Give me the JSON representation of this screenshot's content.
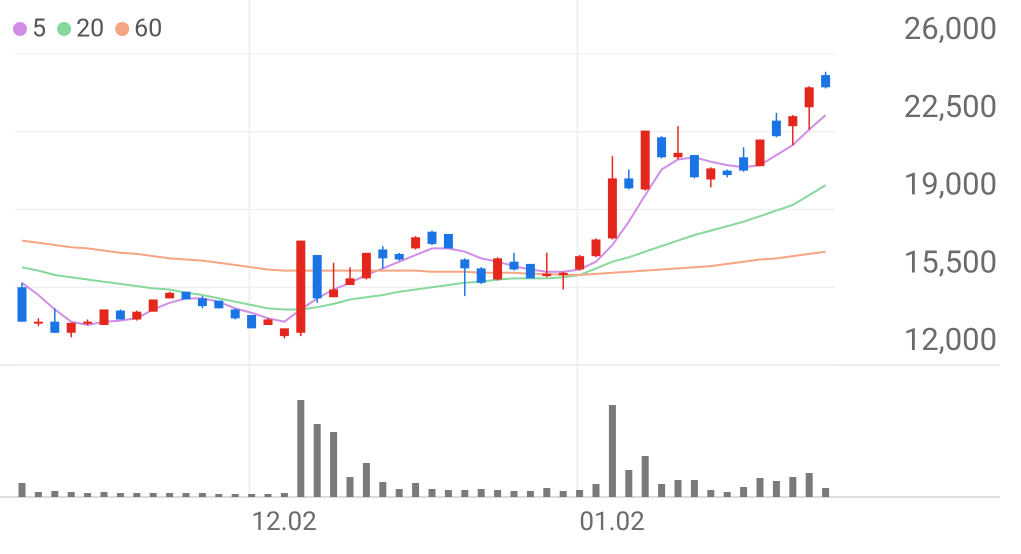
{
  "chart_data": {
    "type": "candlestick",
    "categories": [
      null,
      null,
      null,
      null,
      null,
      null,
      null,
      null,
      null,
      null,
      null,
      null,
      null,
      null,
      "12.02",
      null,
      null,
      null,
      null,
      null,
      null,
      null,
      null,
      null,
      null,
      null,
      null,
      null,
      null,
      null,
      null,
      null,
      null,
      null,
      "01.02",
      null,
      null,
      null,
      null,
      null,
      null,
      null,
      null,
      null,
      null,
      null,
      null,
      null,
      null,
      null
    ],
    "open": [
      15500,
      13900,
      13950,
      13450,
      13900,
      13800,
      14450,
      14050,
      14400,
      15000,
      15300,
      15000,
      14900,
      14500,
      14250,
      13800,
      13300,
      13450,
      16950,
      15050,
      15600,
      15900,
      17200,
      17000,
      17250,
      18000,
      17900,
      16750,
      16350,
      15850,
      16650,
      16550,
      16000,
      16050,
      16300,
      16900,
      17700,
      20400,
      19900,
      22250,
      21350,
      21450,
      20350,
      20750,
      21350,
      20950,
      23000,
      22750,
      23600,
      25050
    ],
    "high": [
      15700,
      14100,
      14550,
      13900,
      14050,
      14500,
      14500,
      14450,
      14950,
      15300,
      15300,
      15100,
      14900,
      14550,
      14250,
      14100,
      13650,
      17600,
      16950,
      16600,
      16400,
      17050,
      17350,
      17050,
      17800,
      18050,
      17900,
      16800,
      16400,
      16850,
      17050,
      16550,
      17050,
      16200,
      16950,
      17700,
      21400,
      20800,
      22550,
      22300,
      22750,
      21450,
      20900,
      20800,
      21800,
      22150,
      23350,
      23250,
      24550,
      25200
    ],
    "low": [
      13950,
      13750,
      13450,
      13250,
      13800,
      13800,
      14050,
      14000,
      14400,
      15000,
      14950,
      14550,
      14550,
      14050,
      13650,
      13800,
      13200,
      13300,
      14800,
      15050,
      15600,
      15850,
      16350,
      16700,
      17200,
      17400,
      17250,
      15100,
      15650,
      15800,
      16250,
      15900,
      15950,
      15400,
      16250,
      16850,
      17650,
      19900,
      19850,
      21300,
      21250,
      20400,
      20000,
      20450,
      20700,
      20950,
      22250,
      21900,
      22600,
      24450
    ],
    "close": [
      13950,
      13950,
      13450,
      13900,
      13950,
      14500,
      14050,
      14400,
      14950,
      15250,
      14950,
      14650,
      14550,
      14100,
      13650,
      14050,
      13650,
      17600,
      15000,
      15400,
      15900,
      17050,
      16800,
      16750,
      17750,
      17450,
      17250,
      16350,
      15700,
      16800,
      16300,
      15900,
      16100,
      16150,
      16900,
      17650,
      20400,
      19950,
      22550,
      21350,
      21550,
      20450,
      20850,
      20550,
      20750,
      22150,
      22300,
      23200,
      24500,
      24500
    ],
    "up_color": "#e3271c",
    "down_color": "#1b74e4",
    "series": [
      {
        "name": "5",
        "color": "#d08ee6",
        "values": [
          15700,
          15150,
          14500,
          13950,
          13800,
          13950,
          14000,
          14100,
          14500,
          14800,
          15000,
          15000,
          14850,
          14550,
          14350,
          14100,
          13950,
          14500,
          15000,
          15400,
          15700,
          16050,
          16350,
          16650,
          16950,
          17250,
          17250,
          17100,
          16800,
          16650,
          16450,
          16300,
          16200,
          16200,
          16300,
          16650,
          17400,
          18450,
          19650,
          20800,
          21250,
          21350,
          21150,
          21000,
          20900,
          21000,
          21450,
          21900,
          22600,
          23250
        ]
      },
      {
        "name": "20",
        "color": "#86d89d",
        "values": [
          16400,
          16250,
          16050,
          15950,
          15850,
          15750,
          15650,
          15550,
          15450,
          15400,
          15250,
          15150,
          15000,
          14850,
          14700,
          14550,
          14500,
          14500,
          14600,
          14750,
          14950,
          15050,
          15150,
          15300,
          15400,
          15500,
          15600,
          15700,
          15750,
          15850,
          15900,
          15900,
          15900,
          15950,
          16050,
          16350,
          16650,
          16850,
          17100,
          17350,
          17600,
          17850,
          18050,
          18250,
          18450,
          18700,
          18950,
          19200,
          19650,
          20100
        ]
      },
      {
        "name": "60",
        "color": "#f5a583",
        "values": [
          17600,
          17500,
          17400,
          17300,
          17250,
          17150,
          17050,
          17000,
          16900,
          16800,
          16750,
          16700,
          16600,
          16500,
          16400,
          16300,
          16250,
          16250,
          16250,
          16250,
          16250,
          16250,
          16250,
          16250,
          16250,
          16200,
          16200,
          16200,
          16150,
          16150,
          16150,
          16100,
          16100,
          16050,
          16050,
          16100,
          16150,
          16200,
          16250,
          16300,
          16350,
          16400,
          16450,
          16550,
          16650,
          16750,
          16800,
          16900,
          17000,
          17100
        ]
      }
    ],
    "volume": {
      "color": "#7a7a7a",
      "ylim": [
        0,
        132
      ],
      "values": [
        14,
        5,
        6,
        5,
        4,
        5,
        4,
        4,
        4,
        4,
        4,
        4,
        3,
        3,
        3,
        3,
        4,
        97,
        73,
        65,
        20,
        34,
        15,
        8,
        14,
        8,
        7,
        7,
        8,
        7,
        6,
        6,
        9,
        6,
        7,
        13,
        92,
        27,
        41,
        13,
        17,
        17,
        7,
        5,
        10,
        19,
        16,
        20,
        24,
        9
      ]
    },
    "ylim": [
      12000,
      28430
    ],
    "yticks": [
      {
        "value": 12000,
        "label": "12,000"
      },
      {
        "value": 15500,
        "label": "15,500"
      },
      {
        "value": 19000,
        "label": "19,000"
      },
      {
        "value": 22500,
        "label": "22,500"
      },
      {
        "value": 26000,
        "label": "26,000"
      }
    ],
    "grid": true
  }
}
